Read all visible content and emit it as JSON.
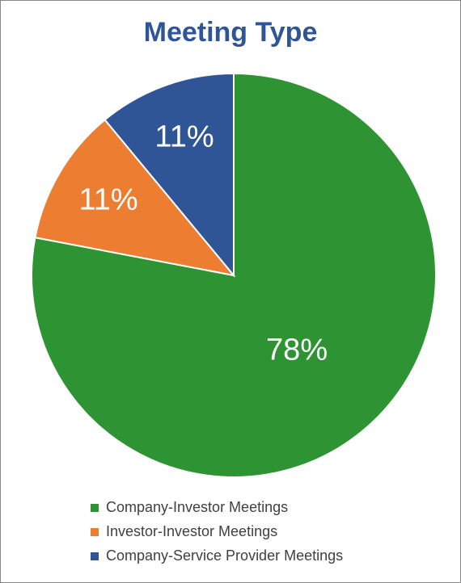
{
  "chart_data": {
    "type": "pie",
    "title": "Meeting Type",
    "categories": [
      "Company-Investor Meetings",
      "Investor-Investor Meetings",
      "Company-Service Provider Meetings"
    ],
    "values": [
      78,
      11,
      11
    ],
    "value_labels": [
      "78%",
      "11%",
      "11%"
    ],
    "colors": [
      "#2e9332",
      "#ed7d31",
      "#2f5597"
    ],
    "legend": "bottom"
  }
}
